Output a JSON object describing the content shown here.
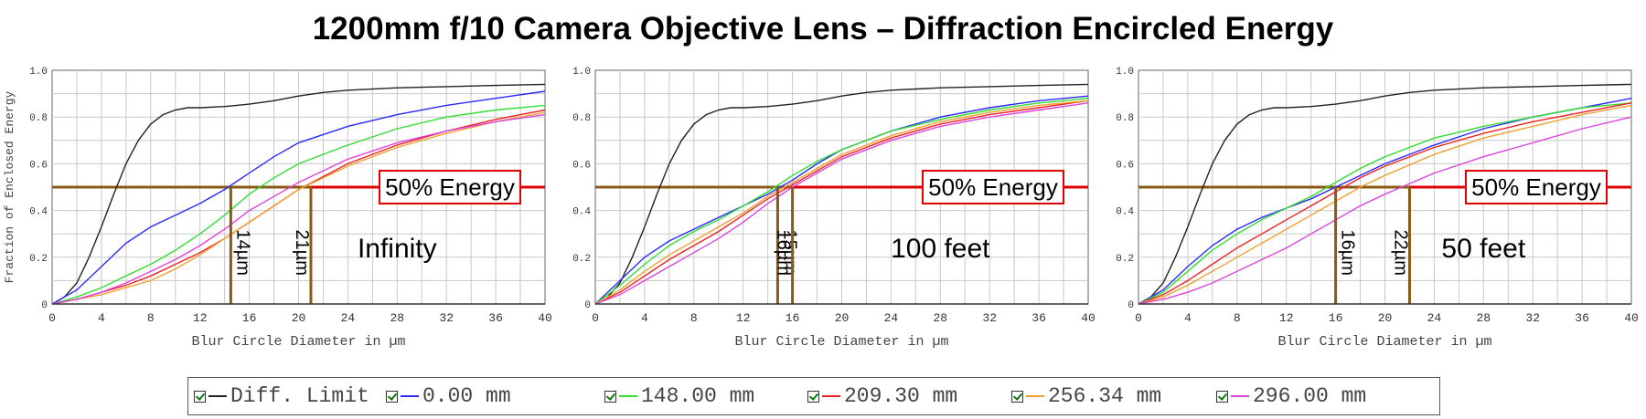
{
  "title": "1200mm f/10 Camera Objective Lens – Diffraction Encircled Energy",
  "colors": {
    "diff_limit": "#222222",
    "field_0": "#2a2aff",
    "field_148": "#33dd33",
    "field_209": "#ee2222",
    "field_256": "#f0a030",
    "field_296": "#dd44dd",
    "guide_brown": "#8a5a14",
    "energy_red": "#e00000",
    "grid": "#c8c8c8"
  },
  "legend": {
    "items": [
      {
        "label": "Diff. Limit",
        "color": "#222222"
      },
      {
        "label": "0.00 mm",
        "color": "#2a2aff"
      },
      {
        "label": "148.00 mm",
        "color": "#33dd33"
      },
      {
        "label": "209.30 mm",
        "color": "#ee2222"
      },
      {
        "label": "256.34 mm",
        "color": "#f0a030"
      },
      {
        "label": "296.00 mm",
        "color": "#dd44dd"
      }
    ]
  },
  "chart_data": [
    {
      "type": "line",
      "condition": "Infinity",
      "xlabel": "Blur Circle Diameter in µm",
      "ylabel": "Fraction of Enclosed Energy",
      "xlim": [
        0,
        40
      ],
      "ylim": [
        0,
        1.0
      ],
      "xticks": [
        "0",
        "4",
        "8",
        "12",
        "16",
        "20",
        "24",
        "28",
        "32",
        "36",
        "40"
      ],
      "yticks": [
        "0",
        "0.2",
        "0.4",
        "0.6",
        "0.8",
        "1.0"
      ],
      "energy_label": "50% Energy",
      "energy_level": 0.5,
      "markers": [
        {
          "x": 14.5,
          "label": "14µm"
        },
        {
          "x": 21,
          "label": "21µm"
        }
      ],
      "series": [
        {
          "name": "Diff. Limit",
          "x": [
            0,
            1,
            2,
            3,
            4,
            5,
            6,
            7,
            8,
            9,
            10,
            11,
            12,
            14,
            16,
            18,
            20,
            22,
            24,
            28,
            32,
            36,
            40
          ],
          "y": [
            0,
            0.03,
            0.09,
            0.2,
            0.33,
            0.47,
            0.6,
            0.7,
            0.77,
            0.81,
            0.83,
            0.84,
            0.84,
            0.845,
            0.855,
            0.87,
            0.89,
            0.905,
            0.915,
            0.925,
            0.93,
            0.935,
            0.94
          ]
        },
        {
          "name": "0.00 mm",
          "x": [
            0,
            2,
            4,
            6,
            8,
            10,
            12,
            14,
            16,
            18,
            20,
            24,
            28,
            32,
            36,
            40
          ],
          "y": [
            0,
            0.06,
            0.16,
            0.26,
            0.33,
            0.38,
            0.43,
            0.49,
            0.56,
            0.63,
            0.69,
            0.76,
            0.81,
            0.85,
            0.88,
            0.91
          ]
        },
        {
          "name": "148.00 mm",
          "x": [
            0,
            2,
            4,
            6,
            8,
            10,
            12,
            14,
            16,
            18,
            20,
            24,
            28,
            32,
            36,
            40
          ],
          "y": [
            0,
            0.03,
            0.07,
            0.12,
            0.17,
            0.23,
            0.3,
            0.38,
            0.47,
            0.54,
            0.6,
            0.68,
            0.75,
            0.8,
            0.83,
            0.85
          ]
        },
        {
          "name": "209.30 mm",
          "x": [
            0,
            2,
            4,
            6,
            8,
            10,
            12,
            14,
            16,
            18,
            20,
            24,
            28,
            32,
            36,
            40
          ],
          "y": [
            0,
            0.02,
            0.05,
            0.08,
            0.12,
            0.17,
            0.22,
            0.28,
            0.35,
            0.42,
            0.49,
            0.6,
            0.68,
            0.74,
            0.79,
            0.83
          ]
        },
        {
          "name": "256.34 mm",
          "x": [
            0,
            2,
            4,
            6,
            8,
            10,
            12,
            14,
            16,
            18,
            20,
            24,
            28,
            32,
            36,
            40
          ],
          "y": [
            0,
            0.02,
            0.04,
            0.07,
            0.1,
            0.15,
            0.21,
            0.28,
            0.35,
            0.42,
            0.49,
            0.59,
            0.67,
            0.73,
            0.78,
            0.82
          ]
        },
        {
          "name": "296.00 mm",
          "x": [
            0,
            2,
            4,
            6,
            8,
            10,
            12,
            14,
            16,
            18,
            20,
            24,
            28,
            32,
            36,
            40
          ],
          "y": [
            0,
            0.02,
            0.05,
            0.09,
            0.14,
            0.19,
            0.25,
            0.32,
            0.4,
            0.46,
            0.52,
            0.62,
            0.69,
            0.74,
            0.78,
            0.81
          ]
        }
      ]
    },
    {
      "type": "line",
      "condition": "100 feet",
      "xlabel": "Blur Circle Diameter in µm",
      "ylabel": "",
      "xlim": [
        0,
        40
      ],
      "ylim": [
        0,
        1.0
      ],
      "xticks": [
        "0",
        "4",
        "8",
        "12",
        "16",
        "20",
        "24",
        "28",
        "32",
        "36",
        "40"
      ],
      "yticks": [
        "0",
        "0.2",
        "0.4",
        "0.6",
        "0.8",
        "1.0"
      ],
      "energy_label": "50% Energy",
      "energy_level": 0.5,
      "markers": [
        {
          "x": 14.8,
          "label": "15µm"
        },
        {
          "x": 16,
          "label": "16µm"
        }
      ],
      "series": [
        {
          "name": "Diff. Limit",
          "x": [
            0,
            1,
            2,
            3,
            4,
            5,
            6,
            7,
            8,
            9,
            10,
            11,
            12,
            14,
            16,
            18,
            20,
            22,
            24,
            28,
            32,
            36,
            40
          ],
          "y": [
            0,
            0.03,
            0.09,
            0.2,
            0.33,
            0.47,
            0.6,
            0.7,
            0.77,
            0.81,
            0.83,
            0.84,
            0.84,
            0.845,
            0.855,
            0.87,
            0.89,
            0.905,
            0.915,
            0.925,
            0.93,
            0.935,
            0.94
          ]
        },
        {
          "name": "0.00 mm",
          "x": [
            0,
            2,
            4,
            6,
            8,
            10,
            12,
            14,
            16,
            18,
            20,
            24,
            28,
            32,
            36,
            40
          ],
          "y": [
            0,
            0.1,
            0.2,
            0.27,
            0.32,
            0.37,
            0.42,
            0.47,
            0.53,
            0.6,
            0.66,
            0.74,
            0.8,
            0.84,
            0.87,
            0.89
          ]
        },
        {
          "name": "148.00 mm",
          "x": [
            0,
            2,
            4,
            6,
            8,
            10,
            12,
            14,
            16,
            18,
            20,
            24,
            28,
            32,
            36,
            40
          ],
          "y": [
            0,
            0.08,
            0.17,
            0.25,
            0.31,
            0.36,
            0.42,
            0.48,
            0.55,
            0.61,
            0.66,
            0.74,
            0.79,
            0.83,
            0.86,
            0.88
          ]
        },
        {
          "name": "209.30 mm",
          "x": [
            0,
            2,
            4,
            6,
            8,
            10,
            12,
            14,
            16,
            18,
            20,
            24,
            28,
            32,
            36,
            40
          ],
          "y": [
            0,
            0.05,
            0.12,
            0.19,
            0.25,
            0.31,
            0.38,
            0.45,
            0.51,
            0.57,
            0.63,
            0.71,
            0.77,
            0.81,
            0.84,
            0.87
          ]
        },
        {
          "name": "256.34 mm",
          "x": [
            0,
            2,
            4,
            6,
            8,
            10,
            12,
            14,
            16,
            18,
            20,
            24,
            28,
            32,
            36,
            40
          ],
          "y": [
            0,
            0.06,
            0.14,
            0.21,
            0.27,
            0.33,
            0.39,
            0.46,
            0.52,
            0.58,
            0.64,
            0.72,
            0.78,
            0.82,
            0.85,
            0.87
          ]
        },
        {
          "name": "296.00 mm",
          "x": [
            0,
            2,
            4,
            6,
            8,
            10,
            12,
            14,
            16,
            18,
            20,
            24,
            28,
            32,
            36,
            40
          ],
          "y": [
            0,
            0.04,
            0.1,
            0.16,
            0.22,
            0.28,
            0.35,
            0.43,
            0.5,
            0.56,
            0.62,
            0.7,
            0.76,
            0.8,
            0.83,
            0.86
          ]
        }
      ]
    },
    {
      "type": "line",
      "condition": "50 feet",
      "xlabel": "Blur Circle Diameter in µm",
      "ylabel": "",
      "xlim": [
        0,
        40
      ],
      "ylim": [
        0,
        1.0
      ],
      "xticks": [
        "0",
        "4",
        "8",
        "12",
        "16",
        "20",
        "24",
        "28",
        "32",
        "36",
        "40"
      ],
      "yticks": [
        "0",
        "0.2",
        "0.4",
        "0.6",
        "0.8",
        "1.0"
      ],
      "energy_label": "50% Energy",
      "energy_level": 0.5,
      "markers": [
        {
          "x": 16,
          "label": "16µm"
        },
        {
          "x": 22,
          "label": "22µm"
        }
      ],
      "series": [
        {
          "name": "Diff. Limit",
          "x": [
            0,
            1,
            2,
            3,
            4,
            5,
            6,
            7,
            8,
            9,
            10,
            11,
            12,
            14,
            16,
            18,
            20,
            22,
            24,
            28,
            32,
            36,
            40
          ],
          "y": [
            0,
            0.03,
            0.09,
            0.2,
            0.33,
            0.47,
            0.6,
            0.7,
            0.77,
            0.81,
            0.83,
            0.84,
            0.84,
            0.845,
            0.855,
            0.87,
            0.89,
            0.905,
            0.915,
            0.925,
            0.93,
            0.935,
            0.94
          ]
        },
        {
          "name": "0.00 mm",
          "x": [
            0,
            2,
            4,
            6,
            8,
            10,
            12,
            14,
            16,
            18,
            20,
            24,
            28,
            32,
            36,
            40
          ],
          "y": [
            0,
            0.06,
            0.16,
            0.25,
            0.32,
            0.37,
            0.41,
            0.45,
            0.5,
            0.55,
            0.6,
            0.68,
            0.75,
            0.8,
            0.84,
            0.88
          ]
        },
        {
          "name": "148.00 mm",
          "x": [
            0,
            2,
            4,
            6,
            8,
            10,
            12,
            14,
            16,
            18,
            20,
            24,
            28,
            32,
            36,
            40
          ],
          "y": [
            0,
            0.05,
            0.14,
            0.23,
            0.3,
            0.36,
            0.41,
            0.46,
            0.52,
            0.58,
            0.63,
            0.71,
            0.76,
            0.8,
            0.84,
            0.86
          ]
        },
        {
          "name": "209.30 mm",
          "x": [
            0,
            2,
            4,
            6,
            8,
            10,
            12,
            14,
            16,
            18,
            20,
            24,
            28,
            32,
            36,
            40
          ],
          "y": [
            0,
            0.04,
            0.1,
            0.17,
            0.24,
            0.3,
            0.36,
            0.42,
            0.48,
            0.54,
            0.59,
            0.67,
            0.73,
            0.78,
            0.82,
            0.86
          ]
        },
        {
          "name": "256.34 mm",
          "x": [
            0,
            2,
            4,
            6,
            8,
            10,
            12,
            14,
            16,
            18,
            20,
            24,
            28,
            32,
            36,
            40
          ],
          "y": [
            0,
            0.03,
            0.08,
            0.14,
            0.2,
            0.26,
            0.32,
            0.38,
            0.44,
            0.5,
            0.55,
            0.64,
            0.71,
            0.76,
            0.81,
            0.85
          ]
        },
        {
          "name": "296.00 mm",
          "x": [
            0,
            2,
            4,
            6,
            8,
            10,
            12,
            14,
            16,
            18,
            20,
            24,
            28,
            32,
            36,
            40
          ],
          "y": [
            0,
            0.02,
            0.05,
            0.09,
            0.14,
            0.19,
            0.24,
            0.3,
            0.36,
            0.42,
            0.47,
            0.56,
            0.63,
            0.69,
            0.75,
            0.8
          ]
        }
      ]
    }
  ]
}
